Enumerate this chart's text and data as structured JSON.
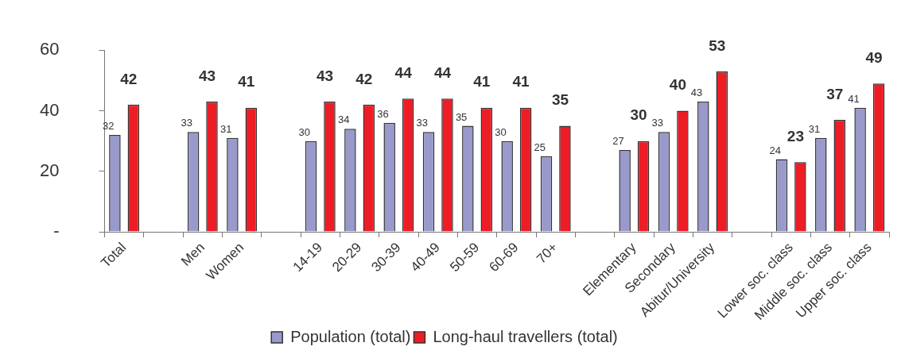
{
  "chart_data": {
    "type": "bar",
    "categories": [
      "Total",
      null,
      "Men",
      "Women",
      null,
      "14-19",
      "20-29",
      "30-39",
      "40-49",
      "50-59",
      "60-69",
      "70+",
      null,
      "Elementary",
      "Secondary",
      "Abitur/University",
      null,
      "Lower soc. class",
      "Middle soc. class",
      "Upper soc. class"
    ],
    "series": [
      {
        "name": "Population (total)",
        "color": "#9999cc",
        "values": [
          32,
          null,
          33,
          31,
          null,
          30,
          34,
          36,
          33,
          35,
          30,
          25,
          null,
          27,
          33,
          43,
          null,
          24,
          31,
          41
        ]
      },
      {
        "name": "Long-haul travellers (total)",
        "color": "#ee1c25",
        "values": [
          42,
          null,
          43,
          41,
          null,
          43,
          42,
          44,
          44,
          41,
          41,
          35,
          null,
          30,
          40,
          53,
          null,
          23,
          37,
          49
        ]
      }
    ],
    "ylim": [
      0,
      60
    ],
    "yticks": [
      {
        "value": 0,
        "label": "-"
      },
      20,
      40,
      60
    ],
    "grid": false,
    "legend": "bottom",
    "data_labels": true
  }
}
